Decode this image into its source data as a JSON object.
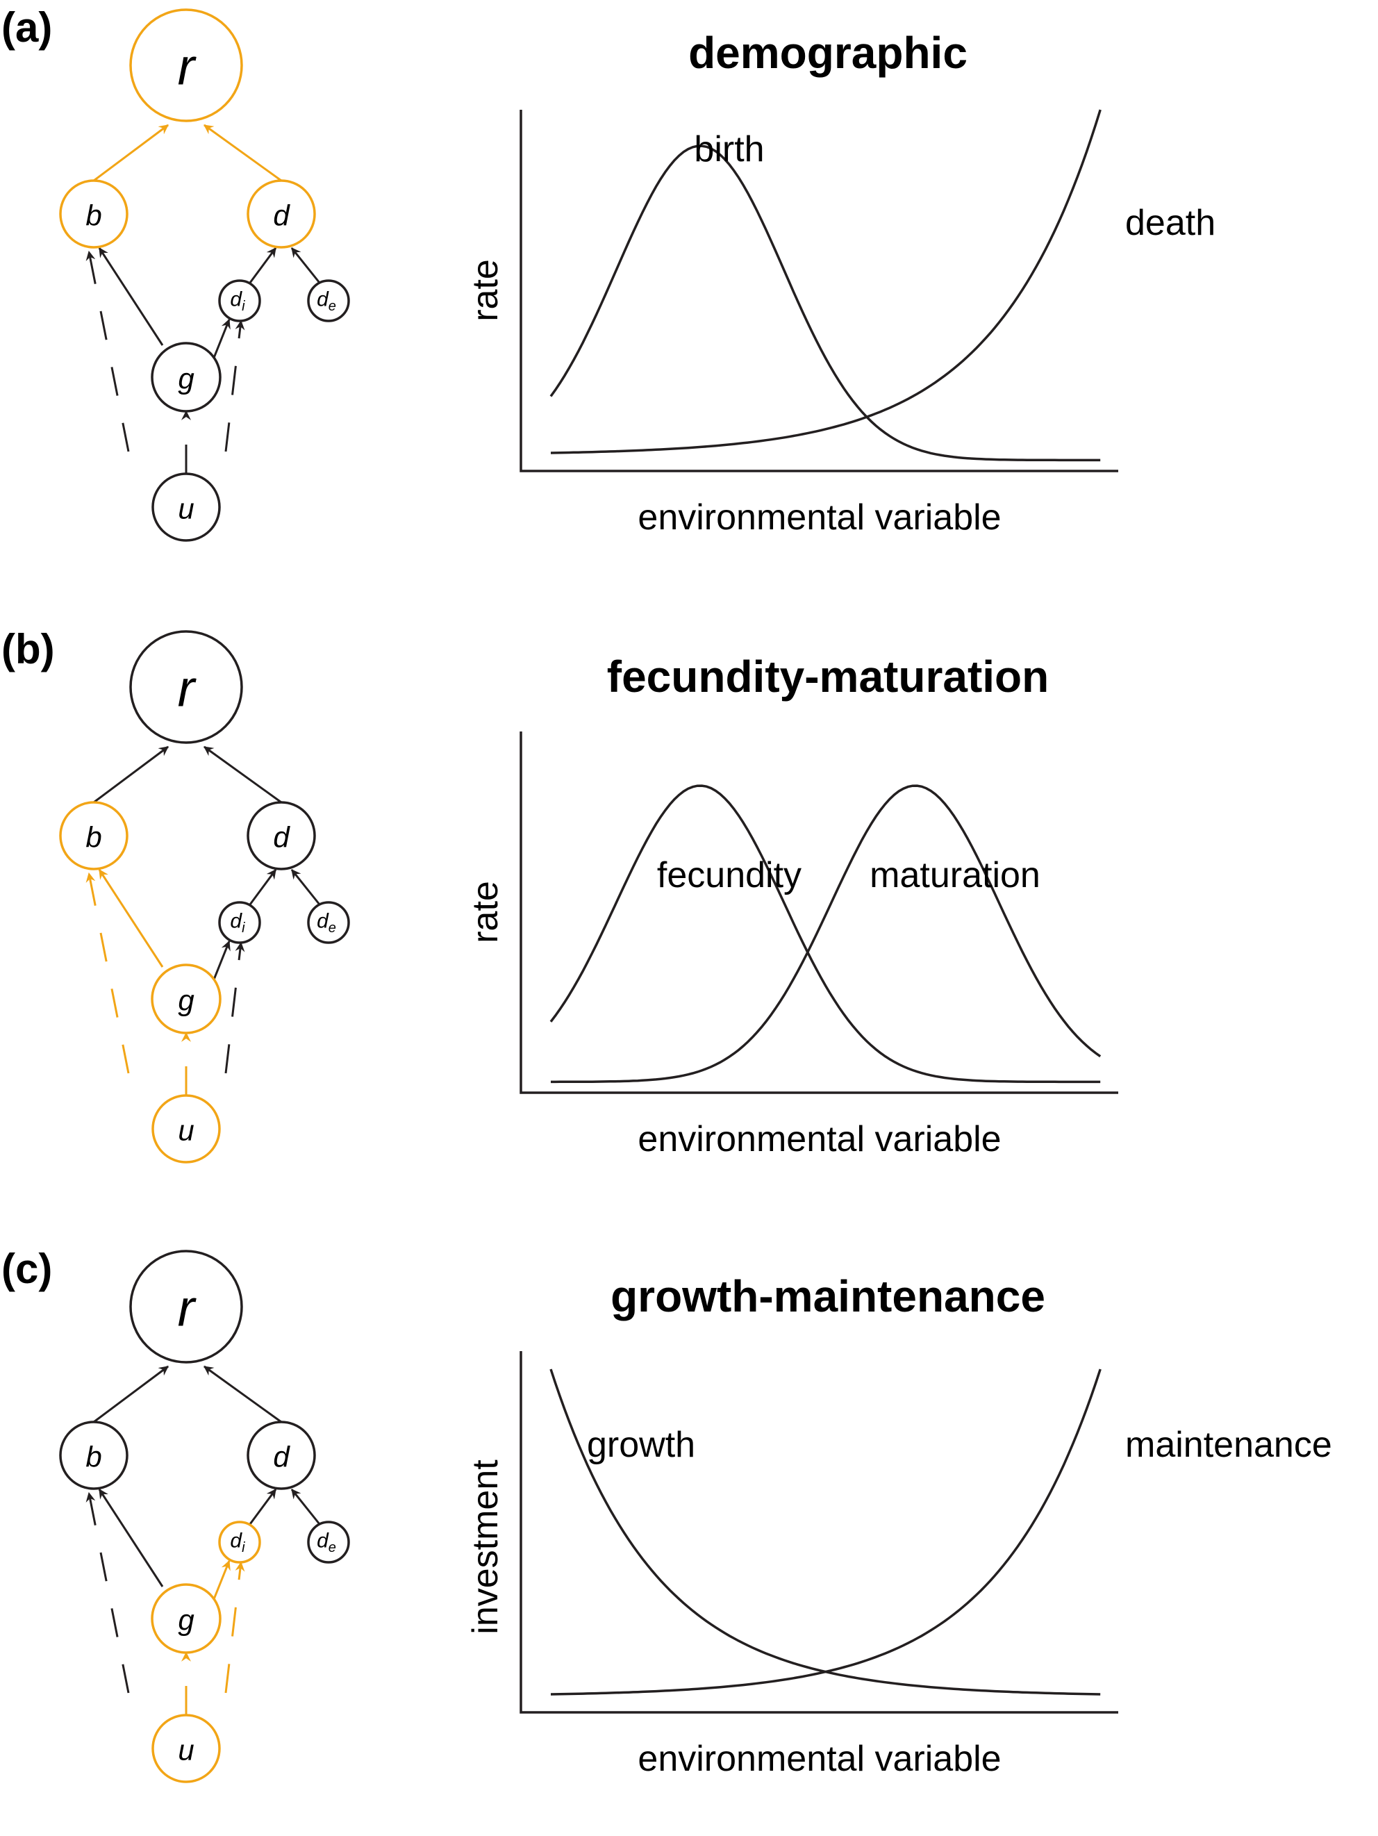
{
  "colors": {
    "highlight": "#f2a516",
    "default": "#231f20"
  },
  "node_labels": {
    "r": "r",
    "b": "b",
    "d": "d",
    "di": "d",
    "di_sub": "i",
    "de": "d",
    "de_sub": "e",
    "g": "g",
    "u": "u"
  },
  "panels": [
    {
      "label": "(a)",
      "title": "demographic",
      "highlight_nodes": [
        "r",
        "b",
        "d"
      ],
      "highlight_edges": [
        "b-r",
        "d-r"
      ],
      "chart_data": {
        "type": "line",
        "title": "demographic",
        "xlabel": "environmental variable",
        "ylabel": "rate",
        "xlim": [
          0,
          1
        ],
        "ylim": [
          0,
          1
        ],
        "series": [
          {
            "name": "birth",
            "shape": "bell",
            "peak_x": 0.3,
            "peak_y": 0.9
          },
          {
            "name": "death",
            "shape": "rising-exponential",
            "start_y": 0.05,
            "end_y": 1.0
          }
        ]
      }
    },
    {
      "label": "(b)",
      "title": "fecundity-maturation",
      "highlight_nodes": [
        "b",
        "g",
        "u"
      ],
      "highlight_edges": [
        "g-b",
        "u-b",
        "u-g"
      ],
      "chart_data": {
        "type": "line",
        "title": "fecundity-maturation",
        "xlabel": "environmental variable",
        "ylabel": "rate",
        "xlim": [
          0,
          1
        ],
        "ylim": [
          0,
          1
        ],
        "series": [
          {
            "name": "fecundity",
            "shape": "bell",
            "peak_x": 0.3,
            "peak_y": 0.85
          },
          {
            "name": "maturation",
            "shape": "bell",
            "peak_x": 0.66,
            "peak_y": 0.85
          }
        ]
      }
    },
    {
      "label": "(c)",
      "title": "growth-maintenance",
      "highlight_nodes": [
        "di",
        "g",
        "u"
      ],
      "highlight_edges": [
        "g-di",
        "u-di",
        "u-g"
      ],
      "chart_data": {
        "type": "line",
        "title": "growth-maintenance",
        "xlabel": "environmental variable",
        "ylabel": "investment",
        "xlim": [
          0,
          1
        ],
        "ylim": [
          0,
          1
        ],
        "series": [
          {
            "name": "growth",
            "shape": "falling-exponential",
            "start_y": 0.95,
            "end_y": 0.05
          },
          {
            "name": "maintenance",
            "shape": "rising-exponential",
            "start_y": 0.05,
            "end_y": 0.95
          }
        ]
      }
    }
  ]
}
